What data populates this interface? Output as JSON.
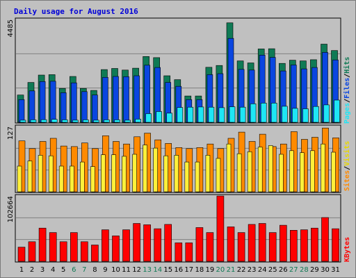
{
  "title": "Daily usage for August 2016",
  "colors": {
    "hits": "#0f7a55",
    "files": "#0a46e0",
    "pages": "#1ee6f5",
    "visits": "#fff03a",
    "sites": "#ff8a00",
    "kbytes": "#ff0000",
    "weekend_label": "#0f7a55",
    "weekday_label": "#000000",
    "slash": "#000000"
  },
  "chart_data": [
    {
      "type": "bar",
      "panel": "hits-files-pages",
      "ymax_label": "4485",
      "ylim": [
        0,
        4485
      ],
      "legend": [
        "Pages",
        "Files",
        "Hits"
      ],
      "series": [
        {
          "name": "Hits",
          "values": [
            1190,
            1740,
            2060,
            2080,
            1480,
            2000,
            1480,
            1390,
            2300,
            2350,
            2280,
            2360,
            2870,
            2820,
            2030,
            1860,
            1150,
            1150,
            2400,
            2480,
            4340,
            2680,
            2590,
            3200,
            3210,
            2570,
            2710,
            2680,
            2730,
            3410,
            3130
          ]
        },
        {
          "name": "Files",
          "values": [
            990,
            1370,
            1780,
            1790,
            1290,
            1720,
            1340,
            1190,
            1960,
            2000,
            1990,
            2030,
            2490,
            2390,
            1740,
            1570,
            990,
            990,
            2080,
            2120,
            3660,
            2310,
            2280,
            2930,
            2830,
            2240,
            2500,
            2330,
            2390,
            3050,
            2720
          ]
        },
        {
          "name": "Pages",
          "values": [
            95,
            110,
            115,
            130,
            110,
            95,
            110,
            95,
            110,
            110,
            95,
            140,
            380,
            470,
            400,
            650,
            660,
            670,
            660,
            640,
            680,
            660,
            810,
            840,
            840,
            700,
            610,
            590,
            690,
            760,
            970
          ]
        }
      ]
    },
    {
      "type": "bar",
      "panel": "visits-sites",
      "ymax_label": "127",
      "ylim": [
        0,
        127
      ],
      "legend": [
        "Sites",
        "Visits"
      ],
      "series": [
        {
          "name": "Sites",
          "values": [
            99,
            84,
            98,
            104,
            89,
            88,
            95,
            84,
            109,
            98,
            93,
            107,
            114,
            101,
            94,
            86,
            84,
            86,
            93,
            84,
            104,
            116,
            98,
            112,
            88,
            93,
            117,
            102,
            106,
            124,
            105
          ]
        },
        {
          "name": "Visits",
          "values": [
            50,
            60,
            71,
            70,
            50,
            50,
            58,
            49,
            72,
            72,
            69,
            73,
            91,
            85,
            70,
            71,
            58,
            58,
            71,
            65,
            93,
            74,
            78,
            87,
            90,
            73,
            80,
            76,
            80,
            93,
            77
          ]
        }
      ]
    },
    {
      "type": "bar",
      "panel": "kbytes",
      "ymax_label": "102664",
      "ylim": [
        0,
        102664
      ],
      "legend": [
        "KBytes"
      ],
      "series": [
        {
          "name": "KBytes",
          "values": [
            22250,
            30780,
            52230,
            45260,
            30780,
            45260,
            30780,
            25640,
            49600,
            39950,
            49600,
            59500,
            57500,
            51230,
            58000,
            29080,
            29080,
            53080,
            45260,
            102664,
            54130,
            45260,
            58000,
            59500,
            45260,
            56700,
            48780,
            49600,
            52230,
            68800,
            51230
          ]
        }
      ]
    },
    {
      "type": "bar",
      "panel": "x-axis",
      "categories": [
        "1",
        "2",
        "3",
        "4",
        "5",
        "6",
        "7",
        "8",
        "9",
        "10",
        "11",
        "12",
        "13",
        "14",
        "15",
        "16",
        "17",
        "18",
        "19",
        "20",
        "21",
        "22",
        "23",
        "24",
        "25",
        "26",
        "27",
        "28",
        "29",
        "30",
        "31"
      ],
      "weekend_days": [
        6,
        7,
        13,
        14,
        20,
        21,
        27,
        28
      ]
    }
  ]
}
